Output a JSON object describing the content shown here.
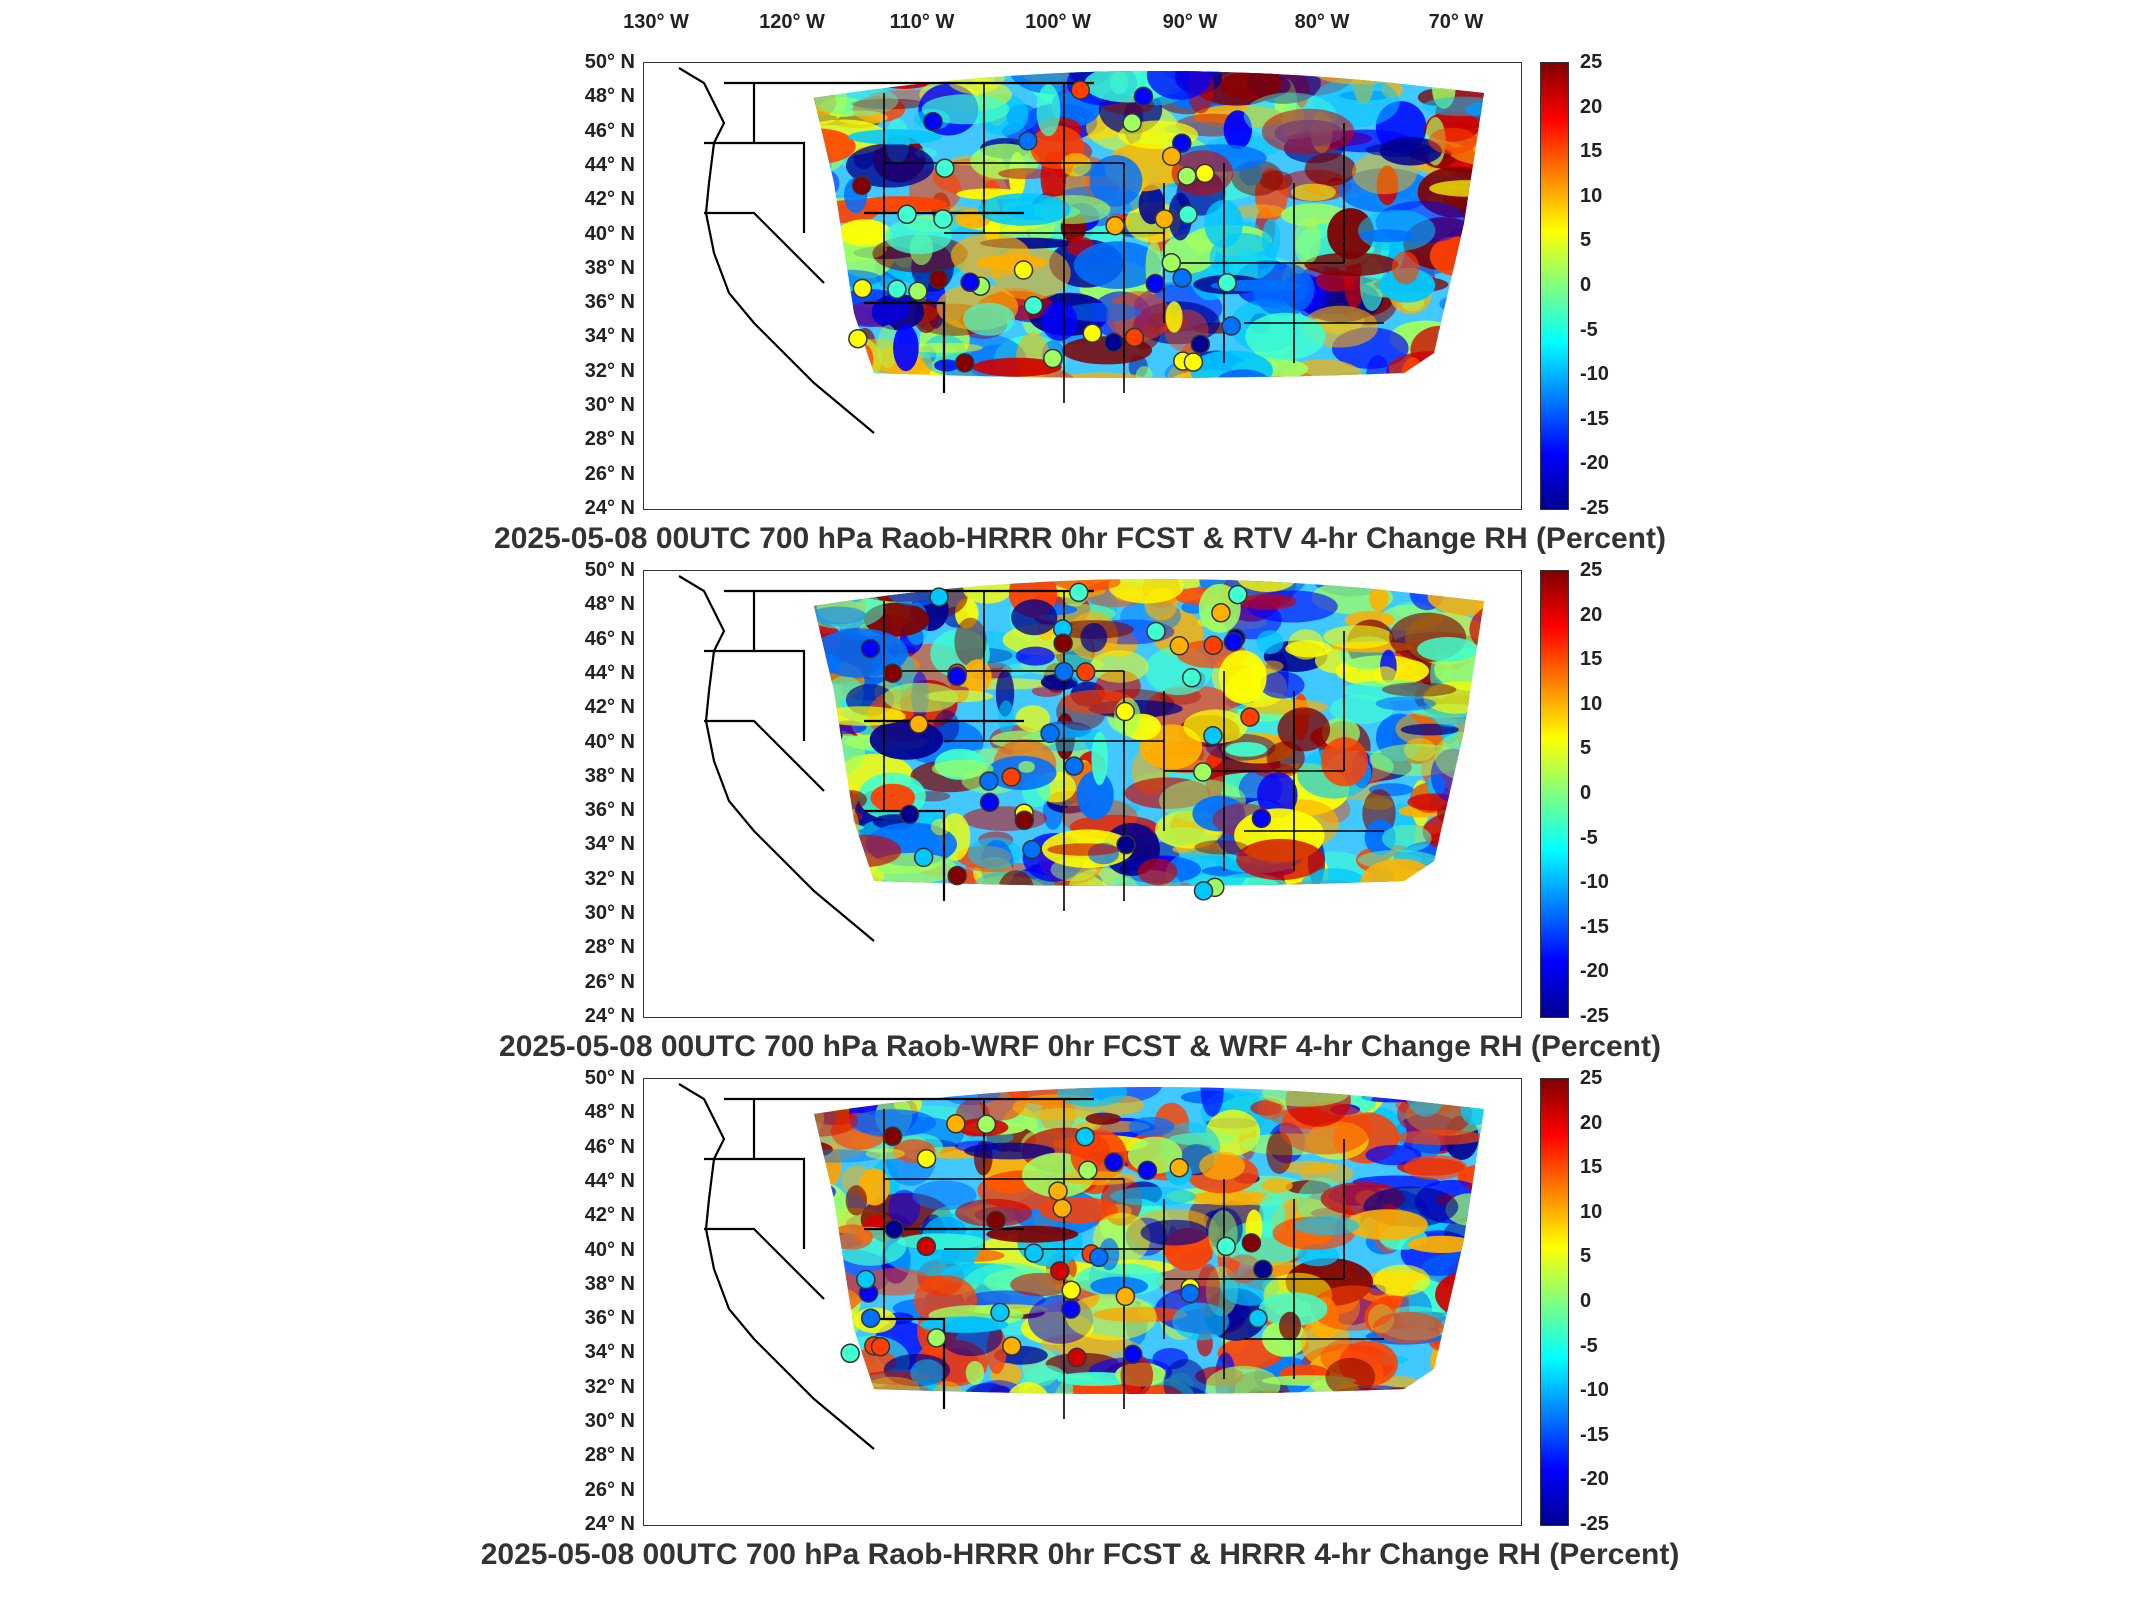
{
  "longitude_labels": [
    "130° W",
    "120° W",
    "110° W",
    "100° W",
    "90° W",
    "80° W",
    "70° W"
  ],
  "latitude_labels": [
    "50° N",
    "48° N",
    "46° N",
    "44° N",
    "42° N",
    "40° N",
    "38° N",
    "36° N",
    "34° N",
    "32° N",
    "30° N",
    "28° N",
    "26° N",
    "24° N"
  ],
  "colorbar": {
    "ticks": [
      "25",
      "20",
      "15",
      "10",
      "5",
      "0",
      "-5",
      "-10",
      "-15",
      "-20",
      "-25"
    ],
    "colors": [
      "#00008f",
      "#0000ff",
      "#0080ff",
      "#00ffff",
      "#80ff80",
      "#ffff00",
      "#ff8000",
      "#ff0000",
      "#800000"
    ]
  },
  "panels": [
    {
      "title": "2025-05-08 00UTC 700 hPa Raob-HRRR 0hr FCST & RTV 4-hr Change RH (Percent)"
    },
    {
      "title": "2025-05-08 00UTC 700 hPa Raob-WRF 0hr FCST & WRF 4-hr Change RH (Percent)"
    },
    {
      "title": "2025-05-08 00UTC 700 hPa Raob-HRRR 0hr FCST & HRRR 4-hr Change RH (Percent)"
    }
  ]
}
